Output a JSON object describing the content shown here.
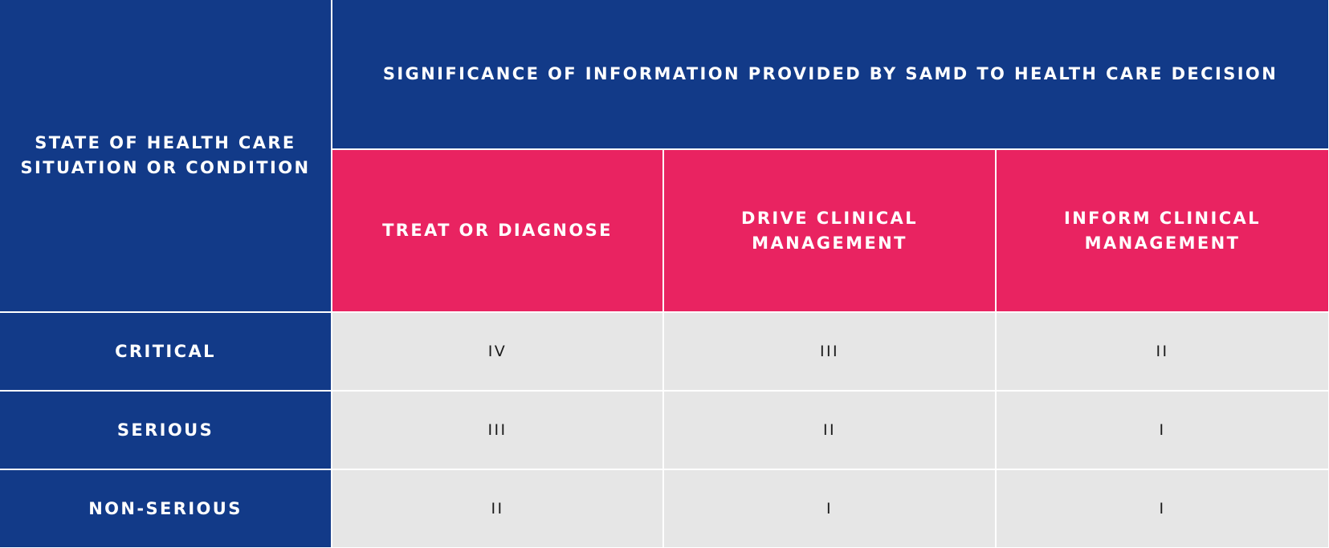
{
  "table": {
    "corner_header": "STATE OF HEALTH CARE\nSITUATION OR CONDITION",
    "group_header": "SIGNIFICANCE OF INFORMATION PROVIDED BY SAMD TO HEALTH CARE DECISION",
    "columns": [
      "TREAT OR DIAGNOSE",
      "DRIVE CLINICAL\nMANAGEMENT",
      "INFORM CLINICAL\nMANAGEMENT"
    ],
    "rows": [
      {
        "state": "CRITICAL",
        "values": [
          "IV",
          "III",
          "II"
        ]
      },
      {
        "state": "SERIOUS",
        "values": [
          "III",
          "II",
          "I"
        ]
      },
      {
        "state": "NON-SERIOUS",
        "values": [
          "II",
          "I",
          "I"
        ]
      }
    ]
  },
  "colors": {
    "header_navy": "#123a88",
    "column_pink": "#e92361",
    "cell_gray": "#e6e6e6",
    "grid_line": "#ffffff"
  }
}
